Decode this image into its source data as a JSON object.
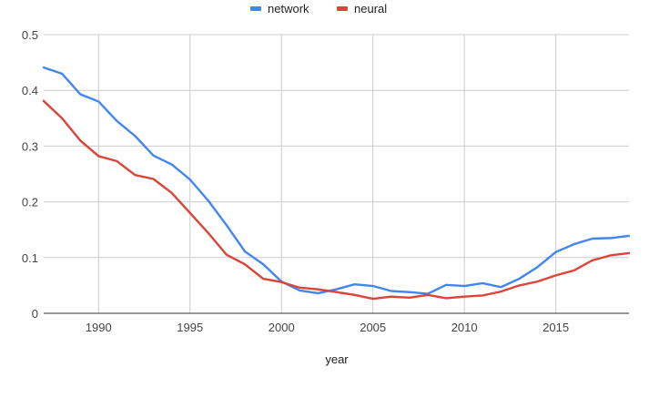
{
  "chart_data": {
    "type": "line",
    "title": "",
    "xlabel": "year",
    "ylabel": "",
    "xlim": [
      1987,
      2019
    ],
    "ylim": [
      0,
      0.5
    ],
    "x_ticks": [
      1990,
      1995,
      2000,
      2005,
      2010,
      2015
    ],
    "y_ticks": [
      0,
      0.1,
      0.2,
      0.3,
      0.4,
      0.5
    ],
    "x_tick_labels": [
      "1990",
      "1995",
      "2000",
      "2005",
      "2010",
      "2015"
    ],
    "y_tick_labels": [
      "0",
      "0.1",
      "0.2",
      "0.3",
      "0.4",
      "0.5"
    ],
    "grid": true,
    "legend_position": "top",
    "x": [
      1987,
      1988,
      1989,
      1990,
      1991,
      1992,
      1993,
      1994,
      1995,
      1996,
      1997,
      1998,
      1999,
      2000,
      2001,
      2002,
      2003,
      2004,
      2005,
      2006,
      2007,
      2008,
      2009,
      2010,
      2011,
      2012,
      2013,
      2014,
      2015,
      2016,
      2017,
      2018,
      2019
    ],
    "series": [
      {
        "name": "network",
        "color": "#4285f4",
        "values": [
          0.441,
          0.43,
          0.393,
          0.38,
          0.345,
          0.318,
          0.283,
          0.267,
          0.24,
          0.202,
          0.158,
          0.111,
          0.088,
          0.057,
          0.041,
          0.036,
          0.043,
          0.052,
          0.049,
          0.04,
          0.038,
          0.035,
          0.051,
          0.049,
          0.054,
          0.047,
          0.062,
          0.083,
          0.11,
          0.124,
          0.134,
          0.135,
          0.139
        ]
      },
      {
        "name": "neural",
        "color": "#db4437",
        "values": [
          0.381,
          0.35,
          0.31,
          0.282,
          0.273,
          0.248,
          0.241,
          0.216,
          0.18,
          0.144,
          0.105,
          0.088,
          0.062,
          0.056,
          0.046,
          0.043,
          0.038,
          0.033,
          0.026,
          0.03,
          0.028,
          0.033,
          0.027,
          0.03,
          0.032,
          0.039,
          0.05,
          0.057,
          0.068,
          0.077,
          0.095,
          0.104,
          0.108
        ]
      }
    ]
  }
}
